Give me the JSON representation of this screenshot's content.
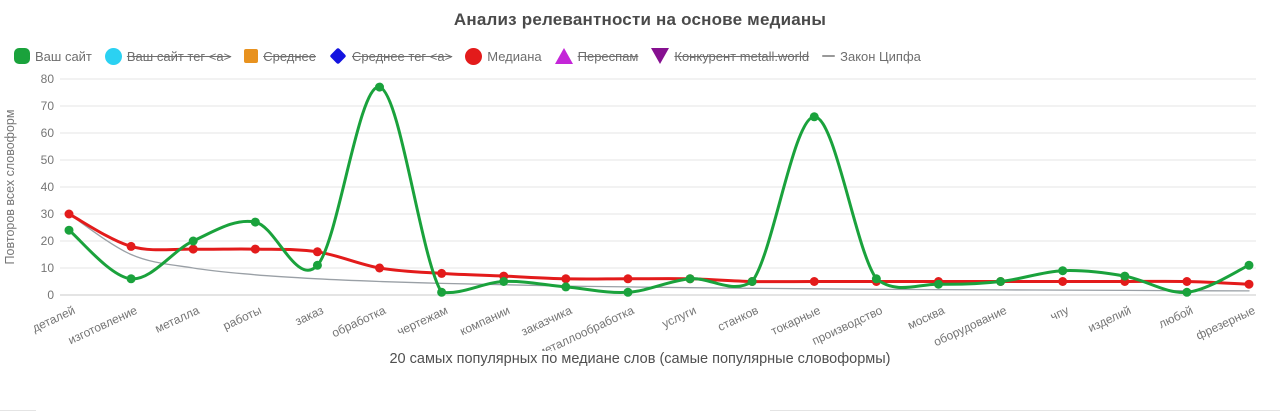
{
  "title": "Анализ релевантности на основе медианы",
  "legend": {
    "items": [
      {
        "key": "your-site",
        "label": "Ваш сайт",
        "marker": "rounded-square",
        "color": "#1aa23c",
        "active": true
      },
      {
        "key": "your-site-tag-a",
        "label": "Ваш сайт тег <a>",
        "marker": "circle",
        "color": "#2bd1f2",
        "active": false
      },
      {
        "key": "average",
        "label": "Среднее",
        "marker": "square",
        "color": "#e8921f",
        "active": false
      },
      {
        "key": "average-tag-a",
        "label": "Среднее тег <a>",
        "marker": "diamond",
        "color": "#1414e0",
        "active": false
      },
      {
        "key": "median",
        "label": "Медиана",
        "marker": "circle",
        "color": "#e31b1b",
        "active": true
      },
      {
        "key": "overspam",
        "label": "Переспам",
        "marker": "triangle-up",
        "color": "#c426d8",
        "active": false
      },
      {
        "key": "competitor",
        "label": "Конкурент metall.world",
        "marker": "triangle-down",
        "color": "#861090",
        "active": false
      },
      {
        "key": "zipf-law",
        "label": "Закон Ципфа",
        "marker": "dash",
        "color": "#999999",
        "active": true
      }
    ]
  },
  "chart_data": {
    "type": "line",
    "title": "Анализ релевантности на основе медианы",
    "xlabel": "20 самых популярных по медиане слов (самые популярные словоформы)",
    "ylabel": "Повторов всех словоформ",
    "ylim": [
      0,
      80
    ],
    "yticks": [
      0,
      10,
      20,
      30,
      40,
      50,
      60,
      70,
      80
    ],
    "grid": true,
    "legend_position": "top",
    "categories": [
      "деталей",
      "изготовление",
      "металла",
      "работы",
      "заказ",
      "обработка",
      "чертежам",
      "компании",
      "заказчика",
      "металлообработка",
      "услуги",
      "станков",
      "токарные",
      "производство",
      "москва",
      "оборудование",
      "чпу",
      "изделий",
      "любой",
      "фрезерные"
    ],
    "series": [
      {
        "name": "Ваш сайт",
        "key": "your-site",
        "color": "#1aa23c",
        "marker": "circle",
        "line_width": 3,
        "values": [
          24,
          6,
          20,
          27,
          11,
          77,
          1,
          5,
          3,
          1,
          6,
          5,
          66,
          6,
          4,
          5,
          9,
          7,
          1,
          11
        ]
      },
      {
        "name": "Медиана",
        "key": "median",
        "color": "#e31b1b",
        "marker": "circle",
        "line_width": 3,
        "values": [
          30,
          18,
          17,
          17,
          16,
          10,
          8,
          7,
          6,
          6,
          6,
          5,
          5,
          5,
          5,
          5,
          5,
          5,
          5,
          4
        ]
      },
      {
        "name": "Закон Ципфа",
        "key": "zipf-law",
        "color": "#9aa0a6",
        "marker": "none",
        "line_width": 1.3,
        "values": [
          30,
          15,
          10,
          7.5,
          6,
          5,
          4.3,
          3.8,
          3.3,
          3,
          2.7,
          2.5,
          2.3,
          2.1,
          2,
          1.9,
          1.8,
          1.7,
          1.6,
          1.5
        ]
      }
    ]
  }
}
